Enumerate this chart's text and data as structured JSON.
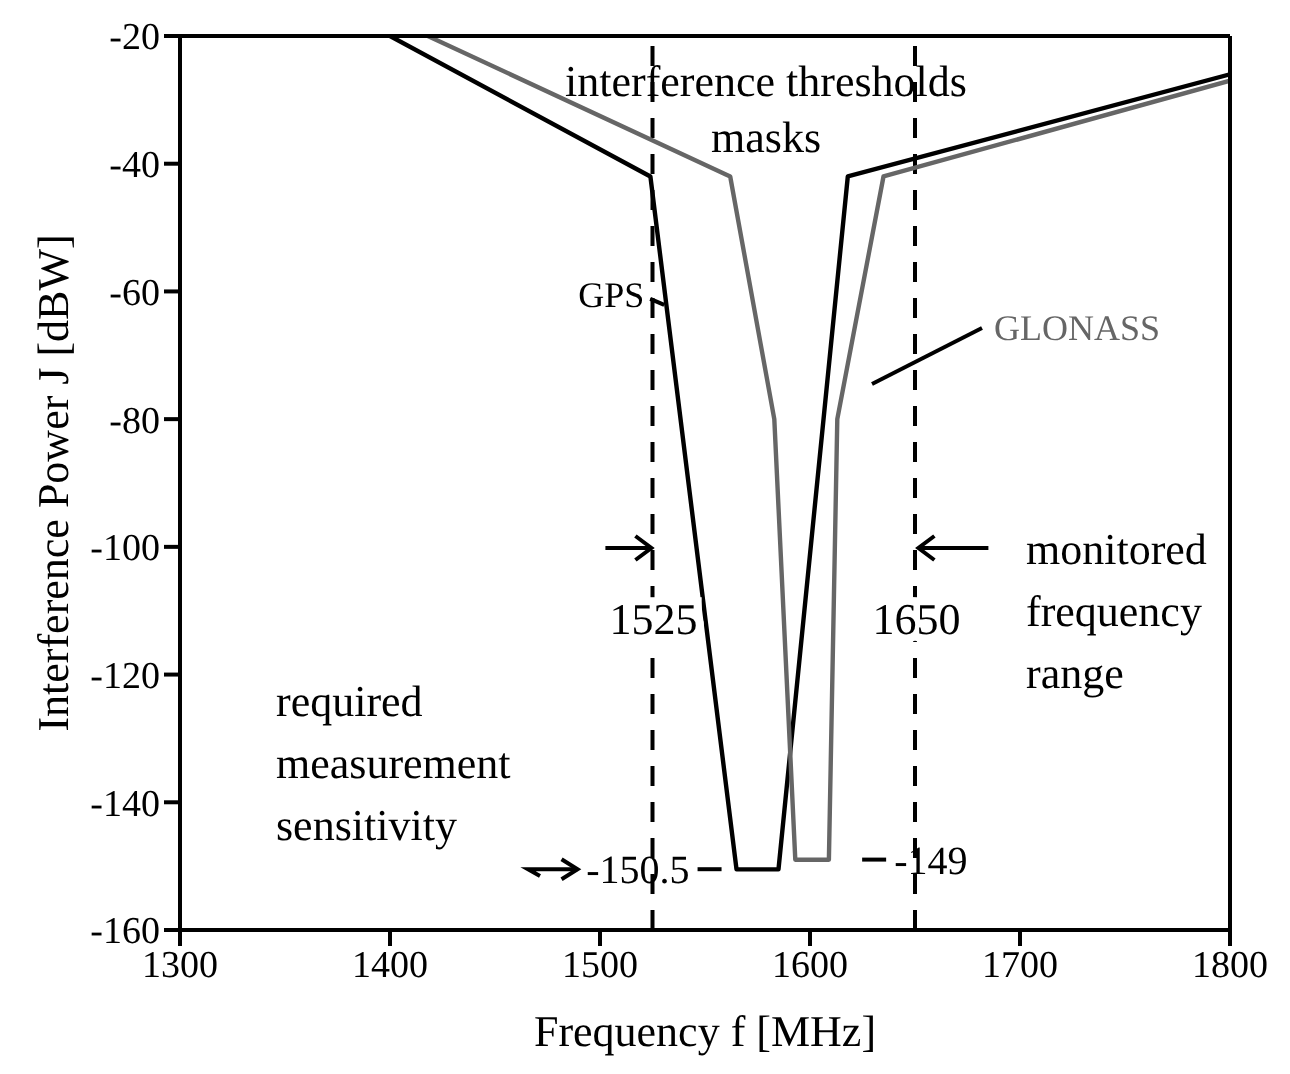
{
  "chart_data": {
    "type": "line",
    "xlabel": "Frequency f [MHz]",
    "ylabel": "Interference Power J [dBW]",
    "xlim": [
      1300,
      1800
    ],
    "xticks": [
      1300,
      1400,
      1500,
      1600,
      1700,
      1800
    ],
    "ylim": [
      -160,
      -20
    ],
    "yticks": [
      -160,
      -140,
      -120,
      -100,
      -80,
      -60,
      -40,
      -20
    ],
    "grid": false,
    "marker": "none",
    "line_style": "solid",
    "series": [
      {
        "name": "GPS",
        "color": "#000000",
        "x": [
          1400,
          1524,
          1565,
          1585,
          1618,
          1800
        ],
        "values": [
          -20,
          -42,
          -150.5,
          -150.5,
          -42,
          -26
        ]
      },
      {
        "name": "GLONASS",
        "color": "#666666",
        "x": [
          1418,
          1562,
          1583,
          1593,
          1609,
          1613,
          1635,
          1800
        ],
        "values": [
          -20,
          -42,
          -80,
          -149,
          -149,
          -80,
          -42,
          -27
        ]
      }
    ],
    "ref_lines": [
      {
        "axis": "x",
        "value": 1525,
        "label": "1525",
        "line_style": "dashed",
        "color": "#000000"
      },
      {
        "axis": "x",
        "value": 1650,
        "label": "1650",
        "line_style": "dashed",
        "color": "#000000"
      }
    ],
    "annotations": [
      "interference thresholds masks",
      "monitored frequency range",
      "required measurement sensitivity",
      {
        "text": "-150.5",
        "x": 1565,
        "y": -150.5
      },
      {
        "text": "-149",
        "x": 1609,
        "y": -149
      }
    ]
  }
}
